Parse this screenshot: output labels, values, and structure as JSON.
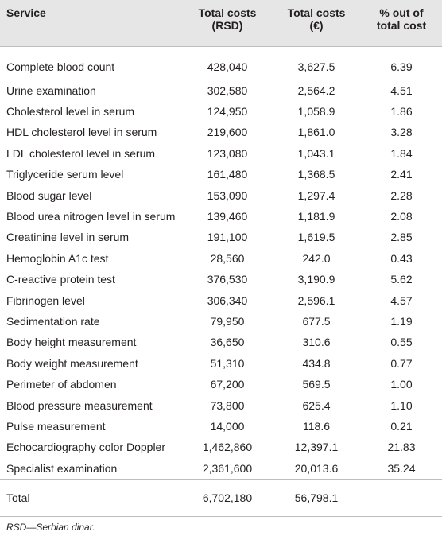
{
  "table": {
    "headers": [
      "Service",
      "Total costs\n(RSD)",
      "Total costs\n(€)",
      "% out of\ntotal cost"
    ],
    "header_lines": [
      [
        "Service"
      ],
      [
        "Total costs",
        "(RSD)"
      ],
      [
        "Total costs",
        "(€)"
      ],
      [
        "% out of",
        "total cost"
      ]
    ],
    "rows": [
      [
        "Complete blood count",
        "428,040",
        "3,627.5",
        "6.39"
      ],
      [
        "Urine examination",
        "302,580",
        "2,564.2",
        "4.51"
      ],
      [
        "Cholesterol level in serum",
        "124,950",
        "1,058.9",
        "1.86"
      ],
      [
        "HDL cholesterol level in serum",
        "219,600",
        "1,861.0",
        "3.28"
      ],
      [
        "LDL cholesterol level in serum",
        "123,080",
        "1,043.1",
        "1.84"
      ],
      [
        "Triglyceride serum level",
        "161,480",
        "1,368.5",
        "2.41"
      ],
      [
        "Blood sugar level",
        "153,090",
        "1,297.4",
        "2.28"
      ],
      [
        "Blood urea nitrogen level in serum",
        "139,460",
        "1,181.9",
        "2.08"
      ],
      [
        "Creatinine level in serum",
        "191,100",
        "1,619.5",
        "2.85"
      ],
      [
        "Hemoglobin A1c test",
        "28,560",
        "242.0",
        "0.43"
      ],
      [
        "C-reactive protein test",
        "376,530",
        "3,190.9",
        "5.62"
      ],
      [
        "Fibrinogen level",
        "306,340",
        "2,596.1",
        "4.57"
      ],
      [
        "Sedimentation rate",
        "79,950",
        "677.5",
        "1.19"
      ],
      [
        "Body height measurement",
        "36,650",
        "310.6",
        "0.55"
      ],
      [
        "Body weight measurement",
        "51,310",
        "434.8",
        "0.77"
      ],
      [
        "Perimeter of abdomen",
        "67,200",
        "569.5",
        "1.00"
      ],
      [
        "Blood pressure measurement",
        "73,800",
        "625.4",
        "1.10"
      ],
      [
        "Pulse measurement",
        "14,000",
        "118.6",
        "0.21"
      ],
      [
        "Echocardiography color Doppler",
        "1,462,860",
        "12,397.1",
        "21.83"
      ],
      [
        "Specialist examination",
        "2,361,600",
        "20,013.6",
        "35.24"
      ]
    ],
    "total": [
      "Total",
      "6,702,180",
      "56,798.1",
      ""
    ]
  },
  "footnote": "RSD—Serbian dinar.",
  "colors": {
    "header_bg": "#e6e6e7",
    "rule": "#bdbdbd",
    "text": "#231f20"
  }
}
